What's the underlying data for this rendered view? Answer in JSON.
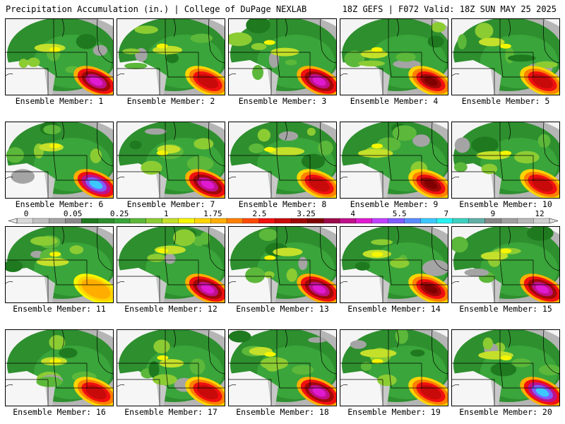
{
  "header": {
    "left_title": "Precipitation Accumulation (in.) | College of DuPage NEXLAB",
    "right_title": "18Z GEFS | F072 Valid: 18Z SUN MAY 25 2025"
  },
  "legend": {
    "labels": [
      "0",
      "0.05",
      "0.25",
      "1",
      "1.75",
      "2.5",
      "3.25",
      "4",
      "5.5",
      "7",
      "9",
      "12"
    ],
    "colors": [
      "#d8d8d8",
      "#c0c0c0",
      "#a4a4a4",
      "#8a8a8a",
      "#1f7a1f",
      "#2e8f2e",
      "#3aa53a",
      "#5cb83a",
      "#8ccc33",
      "#c4e02a",
      "#f6f600",
      "#ffd400",
      "#ffae00",
      "#ff8000",
      "#ff4a00",
      "#f01010",
      "#c80a0a",
      "#a00808",
      "#800000",
      "#9c0a4a",
      "#c0108a",
      "#e01ad0",
      "#c040ff",
      "#7f5cff",
      "#5a8cff",
      "#3cc8ff",
      "#28f0f0",
      "#3cd0c0",
      "#60b0a8",
      "#888888",
      "#a0a0a0",
      "#b8b8b8",
      "#d0d0d0"
    ]
  },
  "members": [
    {
      "caption": "Ensemble Member: 1",
      "max_color": "magenta",
      "hotspot": "southeast"
    },
    {
      "caption": "Ensemble Member: 2",
      "max_color": "red",
      "hotspot": "southeast"
    },
    {
      "caption": "Ensemble Member: 3",
      "max_color": "magenta",
      "hotspot": "southeast"
    },
    {
      "caption": "Ensemble Member: 4",
      "max_color": "darkred",
      "hotspot": "southeast"
    },
    {
      "caption": "Ensemble Member: 5",
      "max_color": "red",
      "hotspot": "southeast"
    },
    {
      "caption": "Ensemble Member: 6",
      "max_color": "cyan",
      "hotspot": "southeast"
    },
    {
      "caption": "Ensemble Member: 7",
      "max_color": "magenta",
      "hotspot": "southeast"
    },
    {
      "caption": "Ensemble Member: 8",
      "max_color": "red",
      "hotspot": "southeast"
    },
    {
      "caption": "Ensemble Member: 9",
      "max_color": "darkred",
      "hotspot": "southeast"
    },
    {
      "caption": "Ensemble Member: 10",
      "max_color": "red",
      "hotspot": "southeast"
    },
    {
      "caption": "Ensemble Member: 11",
      "max_color": "orange",
      "hotspot": "southeast"
    },
    {
      "caption": "Ensemble Member: 12",
      "max_color": "magenta",
      "hotspot": "southeast"
    },
    {
      "caption": "Ensemble Member: 13",
      "max_color": "magenta",
      "hotspot": "southeast"
    },
    {
      "caption": "Ensemble Member: 14",
      "max_color": "darkred",
      "hotspot": "southeast"
    },
    {
      "caption": "Ensemble Member: 15",
      "max_color": "magenta",
      "hotspot": "southeast"
    },
    {
      "caption": "Ensemble Member: 16",
      "max_color": "red",
      "hotspot": "southeast"
    },
    {
      "caption": "Ensemble Member: 17",
      "max_color": "red",
      "hotspot": "southeast"
    },
    {
      "caption": "Ensemble Member: 18",
      "max_color": "magenta",
      "hotspot": "southeast"
    },
    {
      "caption": "Ensemble Member: 19",
      "max_color": "red",
      "hotspot": "southeast"
    },
    {
      "caption": "Ensemble Member: 20",
      "max_color": "cyan",
      "hotspot": "southeast"
    }
  ]
}
